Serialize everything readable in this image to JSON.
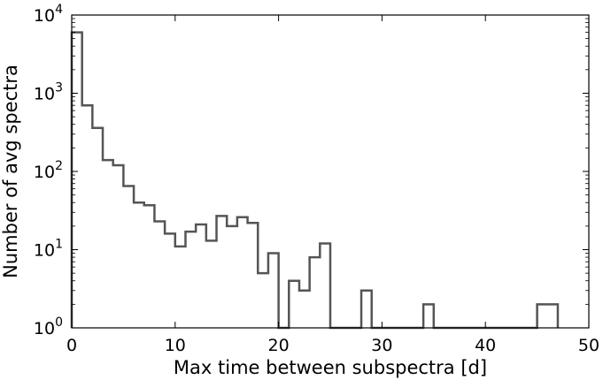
{
  "chart_data": {
    "type": "bar",
    "subtype": "step-histogram",
    "xlabel": "Max time between subspectra [d]",
    "ylabel": "Number of avg spectra",
    "xlim": [
      0,
      50
    ],
    "ylim": [
      1,
      10000
    ],
    "yscale": "log",
    "grid": false,
    "legend": "none",
    "bin_width": 1,
    "x_ticks": [
      {
        "value": 0,
        "label": "0"
      },
      {
        "value": 10,
        "label": "10"
      },
      {
        "value": 20,
        "label": "20"
      },
      {
        "value": 30,
        "label": "30"
      },
      {
        "value": 40,
        "label": "40"
      },
      {
        "value": 50,
        "label": "50"
      }
    ],
    "y_ticks": [
      {
        "value": 1,
        "base": "10",
        "exp": "0"
      },
      {
        "value": 10,
        "base": "10",
        "exp": "1"
      },
      {
        "value": 100,
        "base": "10",
        "exp": "2"
      },
      {
        "value": 1000,
        "base": "10",
        "exp": "3"
      },
      {
        "value": 10000,
        "base": "10",
        "exp": "4"
      }
    ],
    "series": [
      {
        "color": "#555555",
        "bin_starts": [
          0,
          1,
          2,
          3,
          4,
          5,
          6,
          7,
          8,
          9,
          10,
          11,
          12,
          13,
          14,
          15,
          16,
          17,
          18,
          19,
          20,
          21,
          22,
          23,
          24,
          25,
          26,
          27,
          28,
          29,
          30,
          31,
          32,
          33,
          34,
          35,
          36,
          37,
          38,
          39,
          40,
          41,
          42,
          43,
          44,
          45,
          46
        ],
        "values": [
          6000,
          700,
          360,
          140,
          120,
          65,
          40,
          37,
          23,
          16,
          11,
          17,
          21,
          13,
          27,
          20,
          26,
          22,
          5,
          9,
          0,
          4,
          3,
          8,
          12,
          0,
          0,
          0,
          3,
          0,
          0,
          0,
          0,
          0,
          2,
          0,
          0,
          0,
          0,
          0,
          0,
          0,
          0,
          0,
          0,
          2,
          2
        ]
      }
    ]
  }
}
